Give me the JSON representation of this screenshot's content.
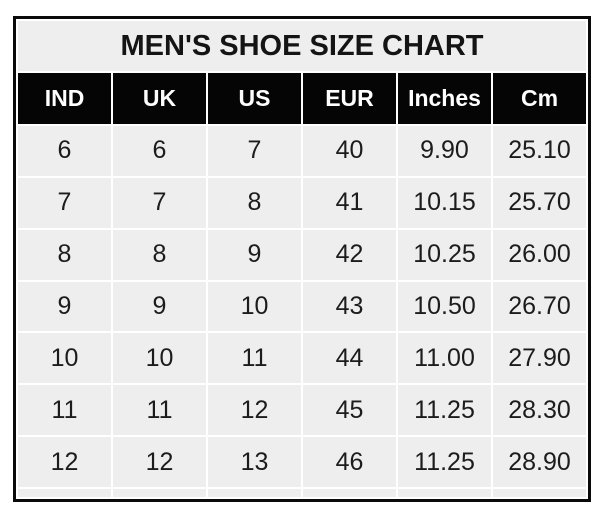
{
  "chart_data": {
    "type": "table",
    "title": "MEN'S SHOE SIZE CHART",
    "columns": [
      "IND",
      "UK",
      "US",
      "EUR",
      "Inches",
      "Cm"
    ],
    "rows": [
      [
        "6",
        "6",
        "7",
        "40",
        "9.90",
        "25.10"
      ],
      [
        "7",
        "7",
        "8",
        "41",
        "10.15",
        "25.70"
      ],
      [
        "8",
        "8",
        "9",
        "42",
        "10.25",
        "26.00"
      ],
      [
        "9",
        "9",
        "10",
        "43",
        "10.50",
        "26.70"
      ],
      [
        "10",
        "10",
        "11",
        "44",
        "11.00",
        "27.90"
      ],
      [
        "11",
        "11",
        "12",
        "45",
        "11.25",
        "28.30"
      ],
      [
        "12",
        "12",
        "13",
        "46",
        "11.25",
        "28.90"
      ]
    ],
    "legend_position": "none",
    "grid": "white gridlines between cells"
  },
  "colors": {
    "border": "#0a0a0a",
    "header_bg": "#050505",
    "header_text": "#ffffff",
    "cell_bg": "#efeeee",
    "gridline": "#ffffff",
    "text": "#1c1c1c",
    "title_text": "#141414",
    "page_bg": "#ffffff"
  }
}
